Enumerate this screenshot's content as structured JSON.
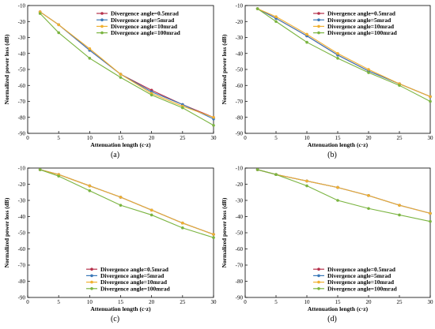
{
  "colors": {
    "divergence_0_5": "#b5304a",
    "divergence_5": "#3a78b8",
    "divergence_10": "#f0b030",
    "divergence_100": "#7ab440"
  },
  "chart_data": [
    {
      "type": "line",
      "panel": "(a)",
      "xlabel": "Attenuation length (c·z)",
      "ylabel": "Normalized power loss (dB)",
      "xlim": [
        0,
        30
      ],
      "ylim": [
        -90,
        -10
      ],
      "xticks": [
        "0",
        "5",
        "10",
        "15",
        "20",
        "25",
        "30"
      ],
      "yticks": [
        "-10",
        "-20",
        "-30",
        "-40",
        "-50",
        "-60",
        "-70",
        "-80",
        "-90"
      ],
      "legend_position": "top-right",
      "series": [
        {
          "name": "Divergence angle=0.5mrad",
          "color": "#b5304a",
          "x": [
            2,
            5,
            10,
            15,
            20,
            25,
            30
          ],
          "y": [
            -14,
            -22,
            -38,
            -53,
            -63,
            -72,
            -80
          ]
        },
        {
          "name": "Divergence angle=5mrad",
          "color": "#3a78b8",
          "x": [
            2,
            5,
            10,
            15,
            20,
            25,
            30
          ],
          "y": [
            -14,
            -22,
            -38,
            -53,
            -64,
            -72,
            -81
          ]
        },
        {
          "name": "Divergence angle=10mrad",
          "color": "#f0b030",
          "x": [
            2,
            5,
            10,
            15,
            20,
            25,
            30
          ],
          "y": [
            -14,
            -22,
            -37,
            -53,
            -65,
            -73,
            -80
          ]
        },
        {
          "name": "Divergence angle=100mrad",
          "color": "#7ab440",
          "x": [
            2,
            5,
            10,
            15,
            20,
            25,
            30
          ],
          "y": [
            -15,
            -27,
            -43,
            -55,
            -66,
            -74,
            -85
          ]
        }
      ]
    },
    {
      "type": "line",
      "panel": "(b)",
      "xlabel": "Attenuation length (c·z)",
      "ylabel": "Normalized power loss (dB)",
      "xlim": [
        0,
        30
      ],
      "ylim": [
        -90,
        -10
      ],
      "xticks": [
        "0",
        "5",
        "10",
        "15",
        "20",
        "25",
        "30"
      ],
      "yticks": [
        "-10",
        "-20",
        "-30",
        "-40",
        "-50",
        "-60",
        "-70",
        "-80",
        "-90"
      ],
      "legend_position": "top-right",
      "series": [
        {
          "name": "Divergence angle=0.5mrad",
          "color": "#b5304a",
          "x": [
            2,
            5,
            10,
            15,
            20,
            25,
            30
          ],
          "y": [
            -12,
            -18,
            -29,
            -41,
            -51,
            -59,
            -67
          ]
        },
        {
          "name": "Divergence angle=5mrad",
          "color": "#3a78b8",
          "x": [
            2,
            5,
            10,
            15,
            20,
            25,
            30
          ],
          "y": [
            -12,
            -18,
            -29,
            -41,
            -51,
            -59,
            -67
          ]
        },
        {
          "name": "Divergence angle=10mrad",
          "color": "#f0b030",
          "x": [
            2,
            5,
            10,
            15,
            20,
            25,
            30
          ],
          "y": [
            -12,
            -17,
            -28,
            -40,
            -50,
            -59,
            -67
          ]
        },
        {
          "name": "Divergence angle=100mrad",
          "color": "#7ab440",
          "x": [
            2,
            5,
            10,
            15,
            20,
            25,
            30
          ],
          "y": [
            -12,
            -20,
            -33,
            -43,
            -52,
            -60,
            -70
          ]
        }
      ]
    },
    {
      "type": "line",
      "panel": "(c)",
      "xlabel": "Attenuation length (c·z)",
      "ylabel": "Normalized power loss (dB)",
      "xlim": [
        0,
        30
      ],
      "ylim": [
        -90,
        -10
      ],
      "xticks": [
        "0",
        "5",
        "10",
        "15",
        "20",
        "25",
        "30"
      ],
      "yticks": [
        "-10",
        "-20",
        "-30",
        "-40",
        "-50",
        "-60",
        "-70",
        "-80",
        "-90"
      ],
      "legend_position": "bottom-left",
      "series": [
        {
          "name": "Divergence angle=0.5mrad",
          "color": "#b5304a",
          "x": [
            2,
            5,
            10,
            15,
            20,
            25,
            30
          ],
          "y": [
            -11,
            -14,
            -21,
            -28,
            -36,
            -44,
            -51
          ]
        },
        {
          "name": "Divergence angle=5mrad",
          "color": "#3a78b8",
          "x": [
            2,
            5,
            10,
            15,
            20,
            25,
            30
          ],
          "y": [
            -11,
            -14,
            -21,
            -28,
            -36,
            -44,
            -51
          ]
        },
        {
          "name": "Divergence angle=10mrad",
          "color": "#f0b030",
          "x": [
            2,
            5,
            10,
            15,
            20,
            25,
            30
          ],
          "y": [
            -11,
            -14,
            -21,
            -28,
            -36,
            -44,
            -51
          ]
        },
        {
          "name": "Divergence angle=100mrad",
          "color": "#7ab440",
          "x": [
            2,
            5,
            10,
            15,
            20,
            25,
            30
          ],
          "y": [
            -11,
            -15,
            -24,
            -33,
            -39,
            -47,
            -53
          ]
        }
      ]
    },
    {
      "type": "line",
      "panel": "(d)",
      "xlabel": "Attenuation length (c·z)",
      "ylabel": "Normalized power loss (dB)",
      "xlim": [
        0,
        30
      ],
      "ylim": [
        -90,
        -10
      ],
      "xticks": [
        "0",
        "5",
        "10",
        "15",
        "20",
        "25",
        "30"
      ],
      "yticks": [
        "-10",
        "-20",
        "-30",
        "-40",
        "-50",
        "-60",
        "-70",
        "-80",
        "-90"
      ],
      "legend_position": "bottom-right",
      "series": [
        {
          "name": "Divergence angle=0.5mrad",
          "color": "#b5304a",
          "x": [
            2,
            5,
            10,
            15,
            20,
            25,
            30
          ],
          "y": [
            -11,
            -14,
            -18,
            -22,
            -27,
            -33,
            -38
          ]
        },
        {
          "name": "Divergence angle=5mrad",
          "color": "#3a78b8",
          "x": [
            2,
            5,
            10,
            15,
            20,
            25,
            30
          ],
          "y": [
            -11,
            -14,
            -18,
            -22,
            -27,
            -33,
            -38
          ]
        },
        {
          "name": "Divergence angle=10mrad",
          "color": "#f0b030",
          "x": [
            2,
            5,
            10,
            15,
            20,
            25,
            30
          ],
          "y": [
            -11,
            -14,
            -18,
            -22,
            -27,
            -33,
            -38
          ]
        },
        {
          "name": "Divergence angle=100mrad",
          "color": "#7ab440",
          "x": [
            2,
            5,
            10,
            15,
            20,
            25,
            30
          ],
          "y": [
            -11,
            -14,
            -21,
            -30,
            -35,
            -39,
            -43
          ]
        }
      ]
    }
  ]
}
